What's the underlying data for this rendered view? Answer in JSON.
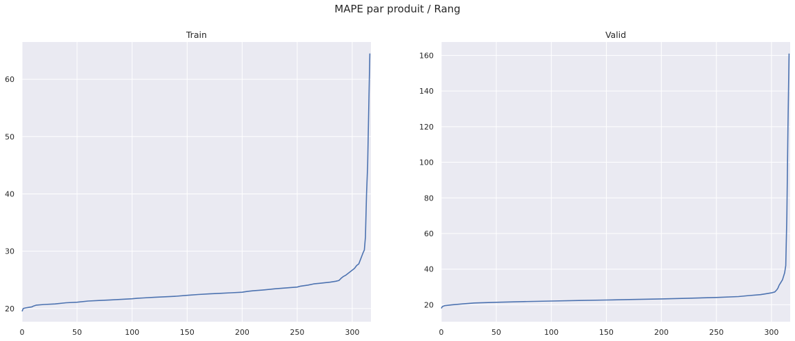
{
  "figure": {
    "title": "MAPE par produit / Rang"
  },
  "chart_data": [
    {
      "type": "line",
      "title": "Train",
      "xlabel": "",
      "ylabel": "",
      "xlim": [
        0,
        317
      ],
      "ylim": [
        17.7,
        66.5
      ],
      "xticks": [
        0,
        50,
        100,
        150,
        200,
        250,
        300
      ],
      "yticks": [
        20,
        30,
        40,
        50,
        60
      ],
      "grid": true,
      "color": "#4c72b0",
      "series": [
        {
          "x": [
            0,
            1,
            3,
            6,
            9,
            10,
            13,
            20,
            30,
            40,
            50,
            60,
            70,
            80,
            90,
            100,
            105,
            110,
            120,
            130,
            140,
            150,
            160,
            170,
            180,
            190,
            200,
            205,
            210,
            220,
            230,
            240,
            250,
            253,
            260,
            265,
            270,
            280,
            285,
            288,
            290,
            292,
            294,
            296,
            298,
            300,
            302,
            304,
            306,
            307,
            308,
            309,
            310,
            311,
            312,
            313,
            314,
            315,
            316
          ],
          "y": [
            19.5,
            20.0,
            20.1,
            20.2,
            20.3,
            20.4,
            20.6,
            20.7,
            20.8,
            21.0,
            21.1,
            21.3,
            21.4,
            21.5,
            21.6,
            21.7,
            21.8,
            21.85,
            21.95,
            22.05,
            22.15,
            22.3,
            22.45,
            22.55,
            22.65,
            22.75,
            22.85,
            23.0,
            23.1,
            23.25,
            23.45,
            23.6,
            23.75,
            23.9,
            24.1,
            24.3,
            24.4,
            24.6,
            24.75,
            24.9,
            25.3,
            25.6,
            25.8,
            26.1,
            26.4,
            26.7,
            27.0,
            27.5,
            27.8,
            28.3,
            28.8,
            29.3,
            29.8,
            30.2,
            32.5,
            40.0,
            45.0,
            55.0,
            64.5
          ]
        }
      ]
    },
    {
      "type": "line",
      "title": "Valid",
      "xlabel": "",
      "ylabel": "",
      "xlim": [
        0,
        317
      ],
      "ylim": [
        10.5,
        167.5
      ],
      "xticks": [
        0,
        50,
        100,
        150,
        200,
        250,
        300
      ],
      "yticks": [
        20,
        40,
        60,
        80,
        100,
        120,
        140,
        160
      ],
      "grid": true,
      "color": "#4c72b0",
      "series": [
        {
          "x": [
            0,
            1,
            3,
            10,
            20,
            30,
            40,
            50,
            75,
            100,
            125,
            150,
            175,
            200,
            225,
            250,
            270,
            280,
            290,
            295,
            300,
            303,
            305,
            306,
            307,
            308,
            309,
            310,
            311,
            312,
            313,
            314,
            315,
            316
          ],
          "y": [
            18.0,
            19.0,
            19.5,
            20.0,
            20.5,
            21.0,
            21.2,
            21.4,
            21.8,
            22.1,
            22.4,
            22.7,
            23.0,
            23.3,
            23.7,
            24.1,
            24.6,
            25.2,
            25.7,
            26.2,
            26.7,
            27.2,
            28.5,
            29.5,
            31.0,
            32.0,
            33.0,
            34.0,
            36.0,
            38.0,
            42.0,
            70.0,
            120.0,
            161.0
          ]
        }
      ]
    }
  ]
}
